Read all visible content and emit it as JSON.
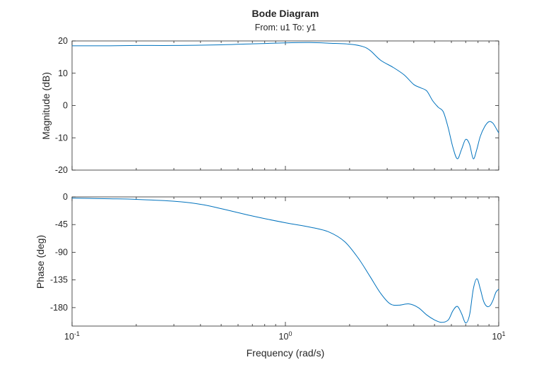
{
  "chart_data": {
    "type": "line",
    "title": "Bode Diagram",
    "subtitle": "From: u1  To: y1",
    "xlabel": "Frequency (rad/s)",
    "x_scale": "log",
    "x_range": [
      0.1,
      10
    ],
    "x_ticks": [
      {
        "value": 0.1,
        "base": "10",
        "exp": "-1"
      },
      {
        "value": 1,
        "base": "10",
        "exp": "0"
      },
      {
        "value": 10,
        "base": "10",
        "exp": "1"
      }
    ],
    "color": "#0072BD",
    "panels": [
      {
        "name": "magnitude",
        "ylabel": "Magnitude (dB)",
        "ylim": [
          -20,
          20
        ],
        "yticks": [
          20,
          10,
          0,
          -10,
          -20
        ],
        "ytick_labels": [
          "20",
          "10",
          "0",
          "-10",
          "-20"
        ],
        "x": [
          0.1,
          0.15,
          0.2,
          0.3,
          0.5,
          0.7,
          1.0,
          1.3,
          1.6,
          2.0,
          2.3,
          2.5,
          2.8,
          3.2,
          3.6,
          4.0,
          4.3,
          4.6,
          4.9,
          5.2,
          5.5,
          5.8,
          6.1,
          6.4,
          6.7,
          7.0,
          7.3,
          7.6,
          7.9,
          8.2,
          8.6,
          9.0,
          9.4,
          9.8,
          10.0
        ],
        "y": [
          18.5,
          18.5,
          18.6,
          18.6,
          18.8,
          19.1,
          19.4,
          19.5,
          19.3,
          19.0,
          18.3,
          17.0,
          14.0,
          11.8,
          9.5,
          6.5,
          5.5,
          4.5,
          1.5,
          -0.5,
          -2.0,
          -7.0,
          -13.0,
          -16.5,
          -13.5,
          -10.5,
          -12.0,
          -16.5,
          -13.5,
          -9.5,
          -6.5,
          -5.0,
          -5.5,
          -7.5,
          -8.5
        ]
      },
      {
        "name": "phase",
        "ylabel": "Phase (deg)",
        "ylim": [
          -210,
          0
        ],
        "yticks": [
          0,
          -45,
          -90,
          -135,
          -180
        ],
        "ytick_labels": [
          "0",
          "-45",
          "-90",
          "-135",
          "-180"
        ],
        "x": [
          0.1,
          0.15,
          0.2,
          0.3,
          0.4,
          0.5,
          0.7,
          1.0,
          1.3,
          1.6,
          1.9,
          2.2,
          2.5,
          2.8,
          3.1,
          3.4,
          3.8,
          4.2,
          4.6,
          5.0,
          5.4,
          5.8,
          6.1,
          6.4,
          6.7,
          7.0,
          7.3,
          7.6,
          7.9,
          8.2,
          8.5,
          8.8,
          9.1,
          9.4,
          9.7,
          10.0
        ],
        "y": [
          -2,
          -3,
          -4,
          -7,
          -12,
          -19,
          -31,
          -42,
          -49,
          -57,
          -73,
          -100,
          -130,
          -157,
          -174,
          -176,
          -174,
          -180,
          -192,
          -200,
          -204,
          -200,
          -185,
          -178,
          -190,
          -205,
          -192,
          -150,
          -133,
          -150,
          -170,
          -178,
          -177,
          -168,
          -155,
          -150
        ]
      }
    ]
  }
}
